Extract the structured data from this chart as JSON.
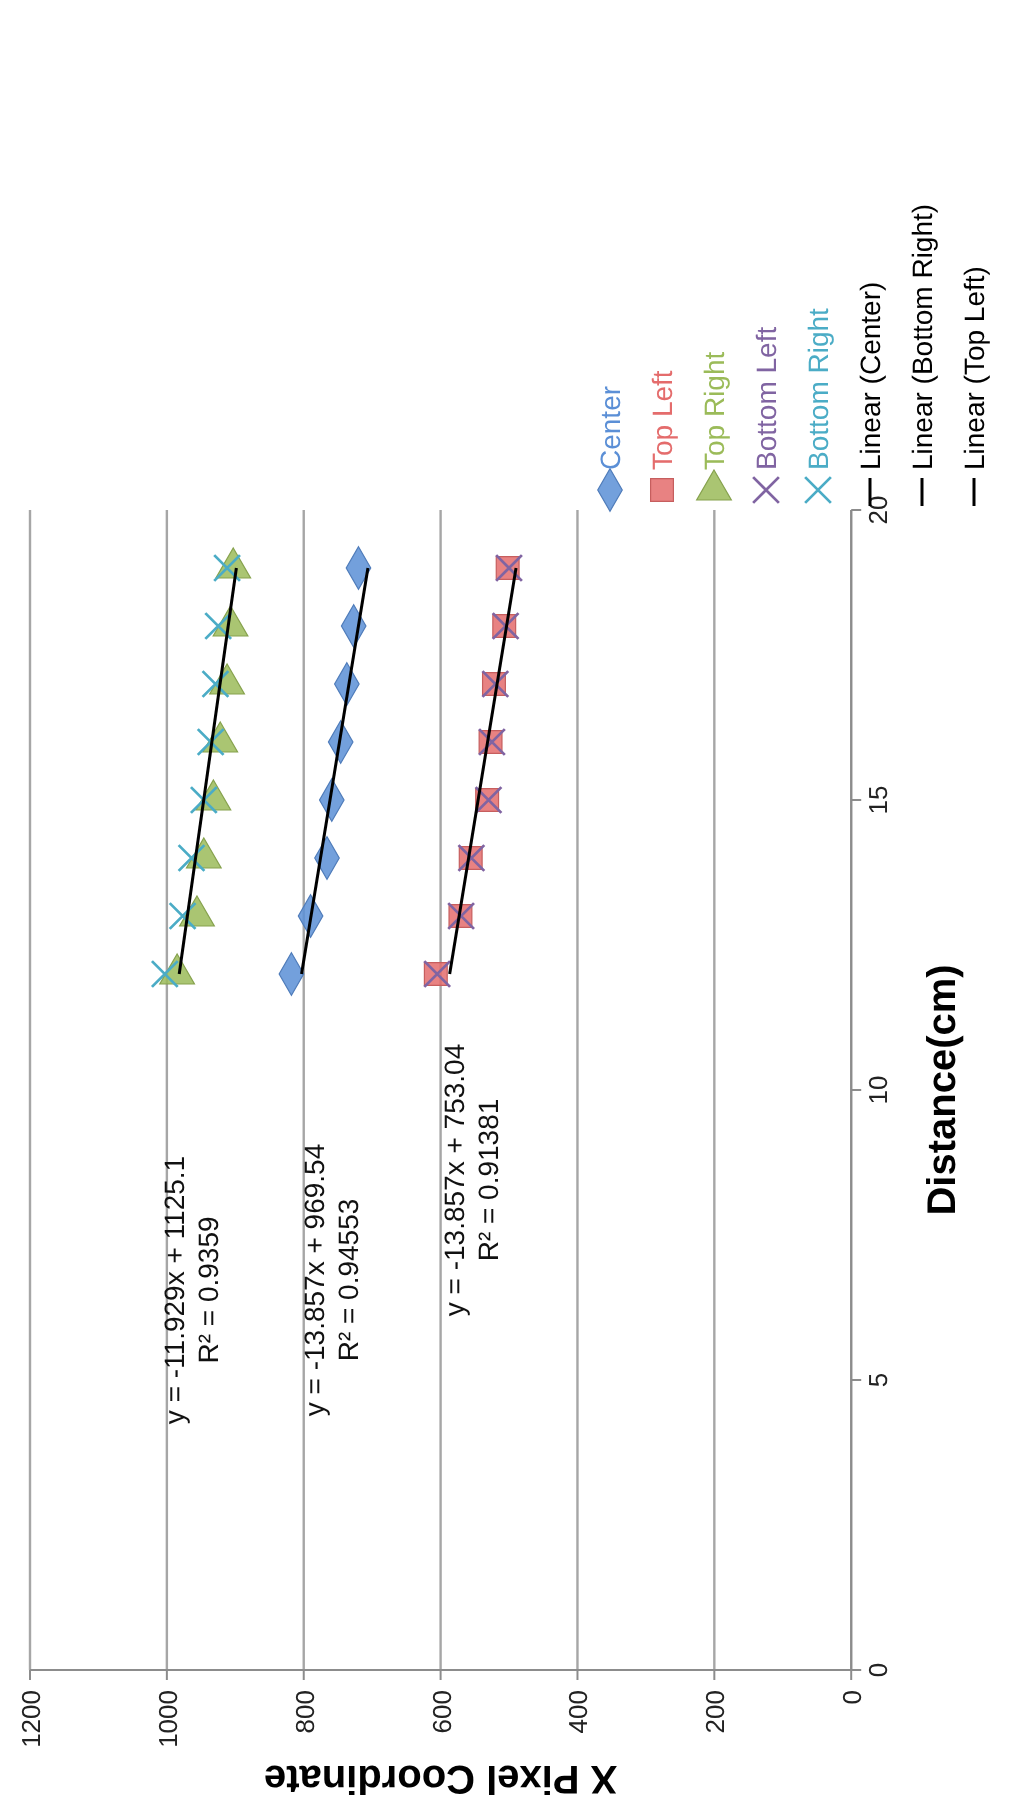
{
  "chart_data": {
    "type": "scatter",
    "xlabel": "X Pixel Coordinate",
    "ylabel": "Distance(cm)",
    "xlim": [
      1200,
      0
    ],
    "xticks": [
      1200,
      1000,
      800,
      600,
      400,
      200,
      0
    ],
    "ylim": [
      0,
      20
    ],
    "yticks": [
      0,
      5,
      10,
      15,
      20
    ],
    "grid": "x",
    "legend": "top",
    "series": [
      {
        "name": "Center",
        "color": "#5b8fd6",
        "marker": "diamond",
        "x": [
          818,
          790,
          766,
          759,
          746,
          737,
          727,
          720
        ],
        "values": [
          12,
          13,
          14,
          15,
          16,
          17,
          18,
          19
        ]
      },
      {
        "name": "Top Left",
        "color": "#e46c6c",
        "marker": "square",
        "x": [
          607,
          571,
          556,
          532,
          527,
          522,
          507,
          502
        ],
        "values": [
          12,
          13,
          14,
          15,
          16,
          17,
          18,
          19
        ]
      },
      {
        "name": "Top Right",
        "color": "#9bbb59",
        "marker": "triangle",
        "x": [
          985,
          956,
          946,
          932,
          922,
          912,
          907,
          903
        ],
        "values": [
          12,
          13,
          14,
          15,
          16,
          17,
          18,
          19
        ]
      },
      {
        "name": "Bottom Left",
        "color": "#8064a2",
        "marker": "cross",
        "x": [
          605,
          570,
          555,
          530,
          525,
          520,
          505,
          500
        ],
        "values": [
          12,
          13,
          14,
          15,
          16,
          17,
          18,
          19
        ]
      },
      {
        "name": "Bottom Right",
        "color": "#4bacc6",
        "marker": "cross",
        "x": [
          1003,
          977,
          964,
          946,
          936,
          929,
          925,
          912
        ],
        "values": [
          12,
          13,
          14,
          15,
          16,
          17,
          18,
          19
        ]
      },
      {
        "name": "Linear (Center)",
        "type": "line",
        "color": "#000000",
        "marker": "none",
        "x": [
          803.2,
          706.2
        ],
        "values": [
          12,
          19
        ]
      },
      {
        "name": "Linear (Bottom Right)",
        "type": "line",
        "color": "#000000",
        "marker": "none",
        "x": [
          981.95,
          898.45
        ],
        "values": [
          12,
          19
        ]
      },
      {
        "name": "Linear (Top Left)",
        "type": "line",
        "color": "#000000",
        "marker": "none",
        "x": [
          586.76,
          489.76
        ],
        "values": [
          12,
          19
        ]
      }
    ],
    "annotations": [
      "y = -11.929x + 1125.1\nR² = 0.9359",
      "y = -13.857x + 969.54\nR² = 0.94553",
      "y = -13.857x + 753.04\nR² = 0.91381"
    ]
  }
}
